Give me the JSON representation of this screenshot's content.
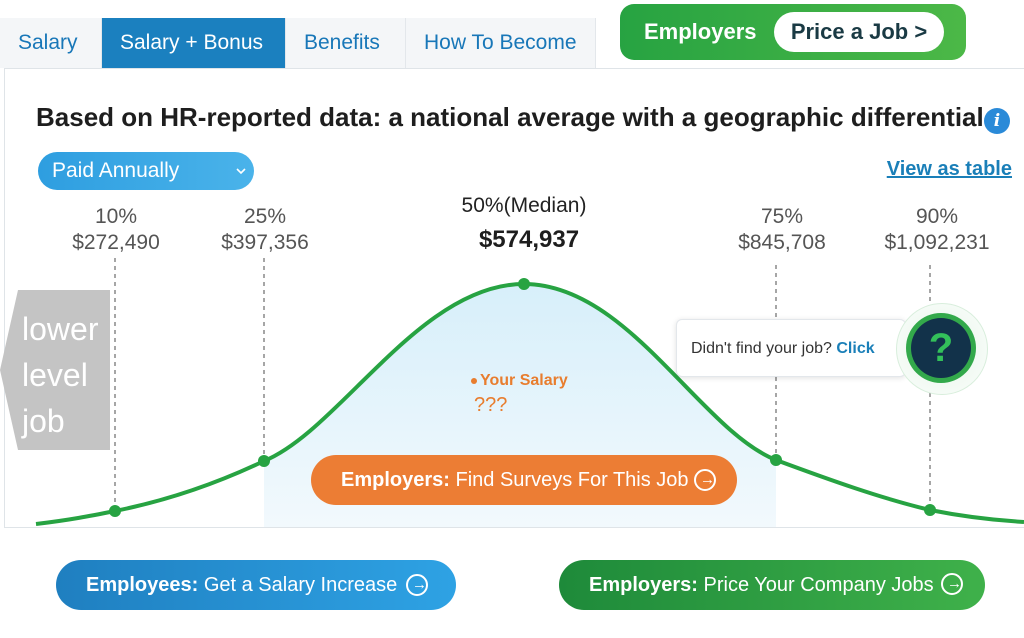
{
  "tabs": [
    {
      "label": "Salary",
      "active": false
    },
    {
      "label": "Salary + Bonus",
      "active": true
    },
    {
      "label": "Benefits",
      "active": false
    },
    {
      "label": "How To Become",
      "active": false
    }
  ],
  "employers_header": {
    "label": "Employers",
    "button": "Price a Job >"
  },
  "headline": "Based on HR-reported data: a national average with a geographic differential",
  "info_icon": "info-icon",
  "pay_period_select": {
    "value": "Paid Annually",
    "icon": "chevron-down-icon"
  },
  "view_as_table": "View as table",
  "percentiles": [
    {
      "label": "10%",
      "value": "$272,490"
    },
    {
      "label": "25%",
      "value": "$397,356"
    },
    {
      "label": "50%(Median)",
      "value": "$574,937"
    },
    {
      "label": "75%",
      "value": "$845,708"
    },
    {
      "label": "90%",
      "value": "$1,092,231"
    }
  ],
  "lower_level_job": "lower level job",
  "your_salary": {
    "label": "Your Salary",
    "value": "???"
  },
  "find_surveys": {
    "prefix": "Employers:",
    "text": "Find Surveys For This Job"
  },
  "didnt_find": {
    "text": "Didn't find your job?",
    "link": "Click"
  },
  "help_icon": "question-mark-icon",
  "bottom_buttons": [
    {
      "prefix": "Employees:",
      "text": "Get a Salary Increase"
    },
    {
      "prefix": "Employers:",
      "text": "Price Your Company Jobs"
    }
  ],
  "colors": {
    "tab_active": "#1b80bf",
    "curve": "#27a342",
    "orange": "#ec7d34",
    "blue_button": "#1f7fc0",
    "green_button": "#2e9e44"
  }
}
